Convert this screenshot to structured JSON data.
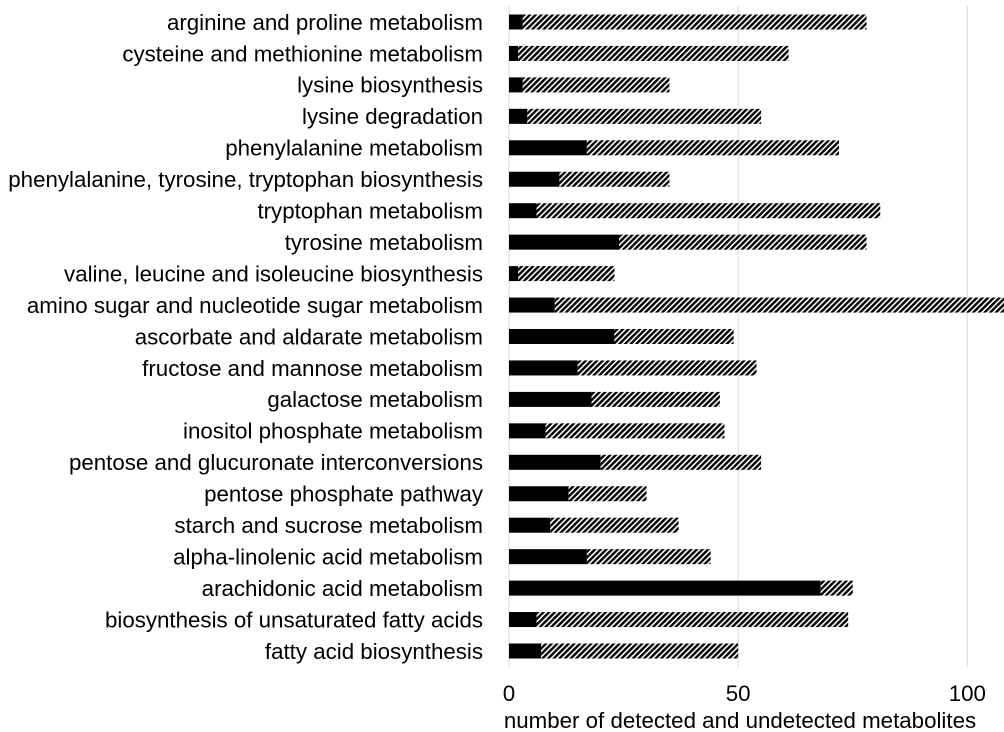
{
  "chart_data": {
    "type": "bar",
    "orientation": "horizontal",
    "stacked": true,
    "title": "",
    "xlabel": "number of detected and undetected metabolites",
    "ylabel": "",
    "categories": [
      "arginine and proline metabolism",
      "cysteine and methionine metabolism",
      "lysine biosynthesis",
      "lysine degradation",
      "phenylalanine metabolism",
      "phenylalanine, tyrosine, tryptophan biosynthesis",
      "tryptophan metabolism",
      "tyrosine metabolism",
      "valine, leucine and isoleucine biosynthesis",
      "amino sugar and nucleotide sugar metabolism",
      "ascorbate and aldarate metabolism",
      "fructose and mannose metabolism",
      "galactose metabolism",
      "inositol phosphate metabolism",
      "pentose and glucuronate interconversions",
      "pentose phosphate pathway",
      "starch and sucrose metabolism",
      "alpha-linolenic acid metabolism",
      "arachidonic acid metabolism",
      "biosynthesis of unsaturated fatty acids",
      "fatty acid biosynthesis"
    ],
    "series": [
      {
        "values": [
          3,
          2,
          3,
          4,
          17,
          11,
          6,
          24,
          2,
          10,
          23,
          15,
          18,
          8,
          20,
          13,
          9,
          17,
          68,
          6,
          7
        ],
        "color": "#000000",
        "pattern": "solid"
      },
      {
        "values": [
          75,
          59,
          32,
          51,
          55,
          24,
          75,
          54,
          21,
          100,
          26,
          39,
          28,
          39,
          35,
          17,
          28,
          27,
          7,
          68,
          43
        ],
        "color": "#000000",
        "pattern": "diagonal-hatch"
      }
    ],
    "xlim": [
      0,
      108
    ],
    "xticks": [
      0,
      50,
      100
    ],
    "xtick_labels": [
      "0",
      "50",
      "100"
    ],
    "grid": true,
    "gridline_color": "#d9d9d9",
    "legend": false
  }
}
